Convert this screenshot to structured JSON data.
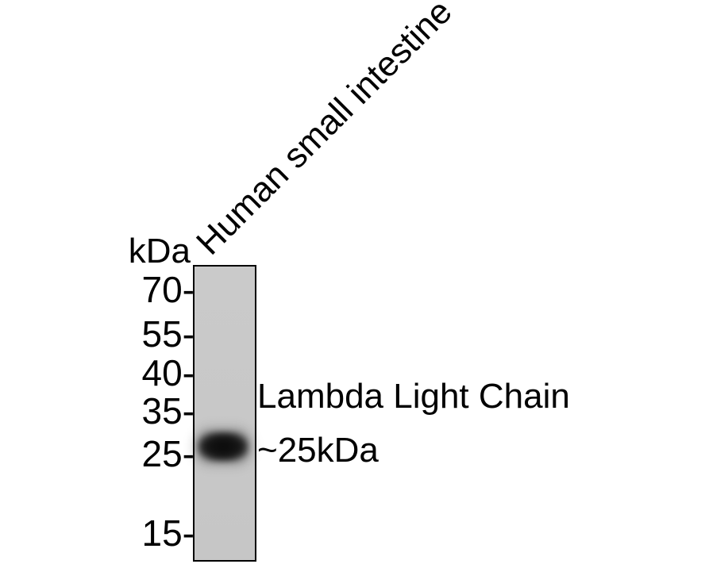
{
  "figure": {
    "unit_label": "kDa",
    "lane_label": "Human small intestine",
    "markers": [
      {
        "label": "70-",
        "value": 70
      },
      {
        "label": "55-",
        "value": 55
      },
      {
        "label": "40-",
        "value": 40
      },
      {
        "label": "35-",
        "value": 35
      },
      {
        "label": "25-",
        "value": 25
      },
      {
        "label": "15-",
        "value": 15
      }
    ],
    "annotation": {
      "line1": "Lambda Light Chain",
      "line2": "~25kDa"
    },
    "colors": {
      "background": "#ffffff",
      "lane_fill": "#c8c8c8",
      "lane_border": "#000000",
      "band": "#141414",
      "text": "#000000"
    }
  }
}
